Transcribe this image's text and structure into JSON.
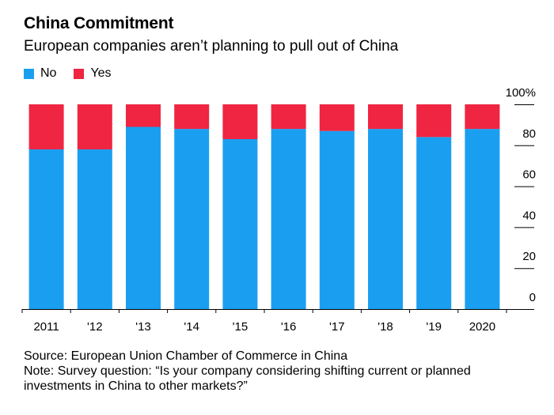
{
  "title": "China Commitment",
  "subtitle": "European companies aren’t planning to pull out of China",
  "legend": [
    {
      "label": "No",
      "color": "#1a9ff0"
    },
    {
      "label": "Yes",
      "color": "#ef2541"
    }
  ],
  "footer": {
    "source": "Source: European Union Chamber of Commerce in China",
    "note_line1": "Note: Survey question: “Is your company considering shifting current or planned",
    "note_line2": "investments in China to other markets?”"
  },
  "chart_data": {
    "type": "bar",
    "stacked": true,
    "categories": [
      "2011",
      "'12",
      "'13",
      "'14",
      "'15",
      "'16",
      "'17",
      "'18",
      "'19",
      "2020"
    ],
    "series": [
      {
        "name": "No",
        "color": "#1a9ff0",
        "values": [
          78,
          78,
          89,
          88,
          83,
          88,
          87,
          88,
          84,
          88
        ]
      },
      {
        "name": "Yes",
        "color": "#ef2541",
        "values": [
          22,
          22,
          11,
          12,
          17,
          12,
          13,
          12,
          16,
          12
        ]
      }
    ],
    "ylim": [
      0,
      100
    ],
    "yticks": [
      0,
      20,
      40,
      60,
      80,
      100
    ],
    "ytick_labels": [
      "0",
      "20",
      "40",
      "60",
      "80",
      "100%"
    ],
    "ylabel_position": "right",
    "grid": false
  }
}
